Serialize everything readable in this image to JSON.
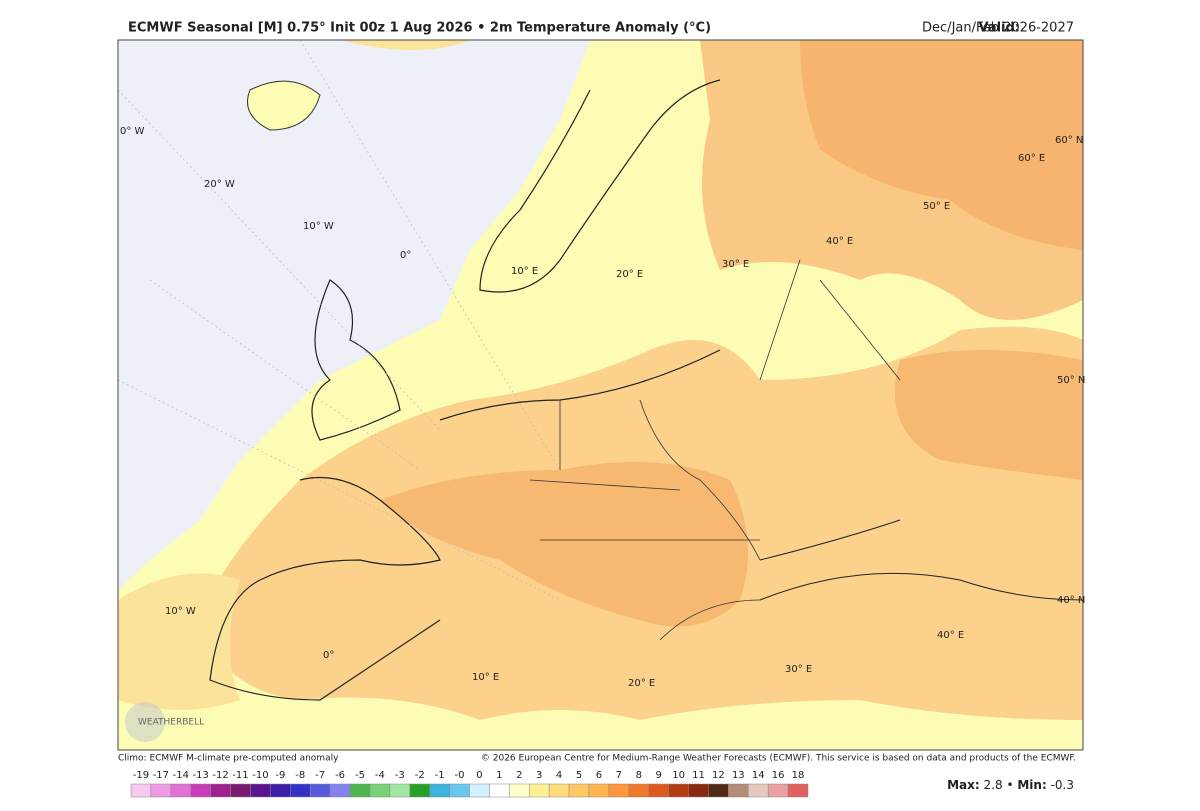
{
  "header": {
    "title": "ECMWF Seasonal [M] 0.75° Init 00z 1 Aug 2026 • 2m Temperature Anomaly (°C)",
    "valid_label": "Valid:",
    "valid": "Dec/Jan/Feb 2026-2027"
  },
  "map": {
    "labels": [
      "0° W",
      "20° W",
      "10° W",
      "0°",
      "10° E",
      "20° E",
      "30° E",
      "40° E",
      "50° E",
      "60° E",
      "60° N",
      "50° N",
      "40° N",
      "10° W",
      "0°",
      "10° E",
      "20° E",
      "30° E",
      "40° E"
    ],
    "watermark": "WEATHERBELL"
  },
  "footer": {
    "climo": "Climo: ECMWF M-climate pre-computed anomaly",
    "copyright": "© 2026 European Centre for Medium-Range Weather Forecasts (ECMWF). This service is based on data and products of the ECMWF."
  },
  "colorbar": {
    "labels": [
      "-19",
      "-17",
      "-14",
      "-13",
      "-12",
      "-11",
      "-10",
      "-9",
      "-8",
      "-7",
      "-6",
      "-5",
      "-4",
      "-3",
      "-2",
      "-1",
      "-0",
      "0",
      "1",
      "2",
      "3",
      "4",
      "5",
      "6",
      "7",
      "8",
      "9",
      "10",
      "11",
      "12",
      "13",
      "14",
      "16",
      "18"
    ],
    "colors": [
      "#f7c8f0",
      "#ee9be4",
      "#e070d6",
      "#c83cb9",
      "#a0208f",
      "#781a6e",
      "#5a1490",
      "#3c1ea8",
      "#3232c8",
      "#5a5ae0",
      "#8282f0",
      "#50b450",
      "#78d278",
      "#a0e6a0",
      "#28a028",
      "#3cb4dc",
      "#64c8f0",
      "#d2f0ff",
      "#ffffff",
      "#ffffc8",
      "#fff096",
      "#ffdc78",
      "#ffc864",
      "#ffb450",
      "#ff963c",
      "#f0782d",
      "#dc5a1e",
      "#b43c14",
      "#8c2810",
      "#502814",
      "#b48c78",
      "#e6c8be",
      "#e8a0a0",
      "#e06060"
    ]
  },
  "stats": {
    "max_label": "Max:",
    "max": "2.8",
    "separator": "•",
    "min_label": "Min:",
    "min": "-0.3"
  }
}
